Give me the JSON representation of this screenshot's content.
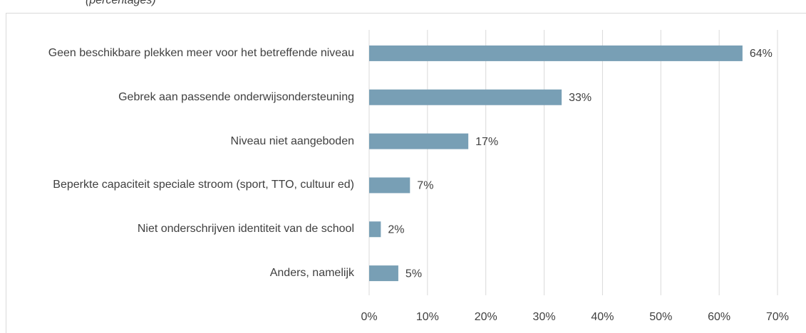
{
  "chart_data": {
    "type": "bar",
    "orientation": "horizontal",
    "subtitle": "(percentages)",
    "categories": [
      "Geen beschikbare plekken meer voor het betreffende niveau",
      "Gebrek aan passende onderwijsondersteuning",
      "Niveau niet aangeboden",
      "Beperkte capaciteit speciale stroom (sport, TTO, cultuur ed)",
      "Niet onderschrijven identiteit van de school",
      "Anders, namelijk"
    ],
    "values": [
      64,
      33,
      17,
      7,
      2,
      5
    ],
    "value_labels": [
      "64%",
      "33%",
      "17%",
      "7%",
      "2%",
      "5%"
    ],
    "color": "#789fb5",
    "xlim": [
      0,
      70
    ],
    "xticks": [
      {
        "value": 0,
        "label": "0%"
      },
      {
        "value": 10,
        "label": "10%"
      },
      {
        "value": 20,
        "label": "20%"
      },
      {
        "value": 30,
        "label": "30%"
      },
      {
        "value": 40,
        "label": "40%"
      },
      {
        "value": 50,
        "label": "50%"
      },
      {
        "value": 60,
        "label": "60%"
      },
      {
        "value": 70,
        "label": "70%"
      }
    ],
    "grid": true
  }
}
